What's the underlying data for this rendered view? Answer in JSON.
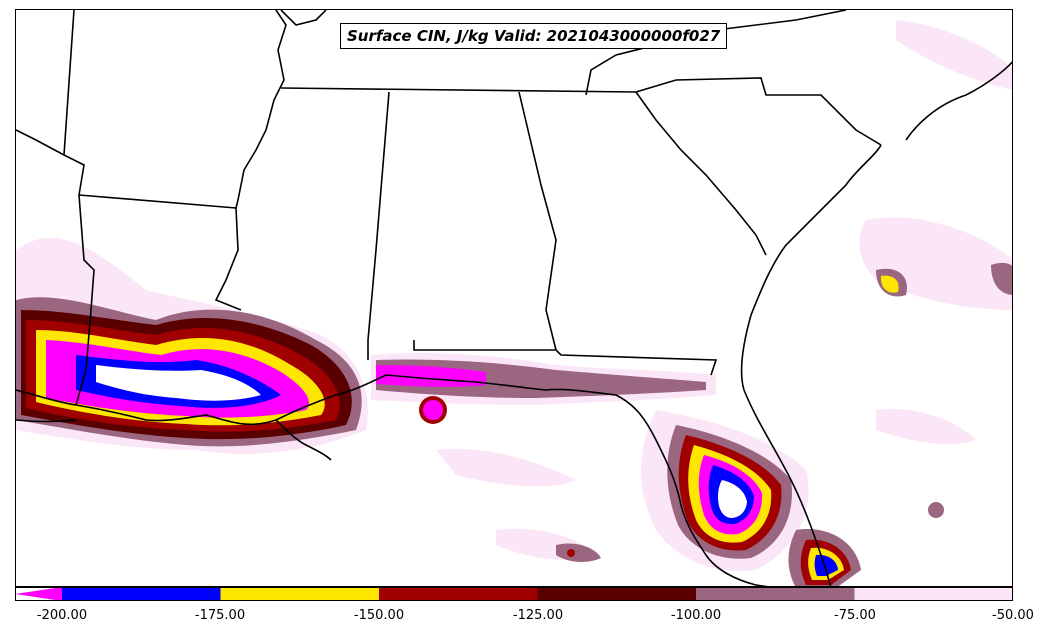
{
  "map": {
    "title": "Surface CIN, J/kg Valid: 2021043000000f027"
  },
  "colorbar": {
    "extend": "min",
    "levels": [
      {
        "from": "below",
        "to": -200,
        "color": "#ff00ff"
      },
      {
        "from": -200,
        "to": -175,
        "color": "#0000ff"
      },
      {
        "from": -175,
        "to": -150,
        "color": "#ffe600"
      },
      {
        "from": -150,
        "to": -125,
        "color": "#a00000"
      },
      {
        "from": -125,
        "to": -100,
        "color": "#5a0000"
      },
      {
        "from": -100,
        "to": -75,
        "color": "#9b6680"
      },
      {
        "from": -75,
        "to": -50,
        "color": "#fbe6f7"
      }
    ],
    "tick_labels": [
      "-200.00",
      "-175.00",
      "-150.00",
      "-125.00",
      "-100.00",
      "-75.00",
      "-50.00"
    ]
  }
}
